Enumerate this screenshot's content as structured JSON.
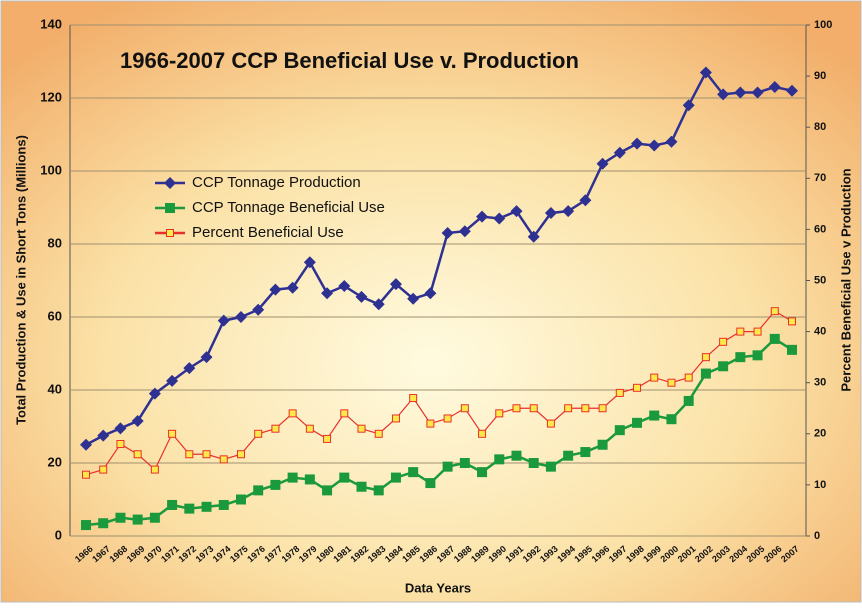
{
  "chart_data": {
    "type": "line",
    "title": "1966-2007 CCP Beneficial Use v. Production",
    "xlabel": "Data Years",
    "ylabel": "Total Production & Use in Short Tons (Millions)",
    "y2label": "Percent Beneficial Use v Production",
    "categories": [
      "1966",
      "1967",
      "1968",
      "1969",
      "1970",
      "1971",
      "1972",
      "1973",
      "1974",
      "1975",
      "1976",
      "1977",
      "1978",
      "1979",
      "1980",
      "1981",
      "1982",
      "1983",
      "1984",
      "1985",
      "1986",
      "1987",
      "1988",
      "1989",
      "1990",
      "1991",
      "1992",
      "1993",
      "1994",
      "1995",
      "1996",
      "1997",
      "1998",
      "1999",
      "2000",
      "2001",
      "2002",
      "2003",
      "2004",
      "2005",
      "2006",
      "2007"
    ],
    "series": [
      {
        "name": "CCP Tonnage Production",
        "color": "#2e3192",
        "marker": "diamond",
        "values": [
          25,
          27.5,
          29.5,
          31.5,
          39,
          42.5,
          46,
          49,
          59,
          60,
          62,
          67.5,
          68,
          75,
          66.5,
          68.5,
          65.5,
          63.5,
          69,
          65,
          66.5,
          83,
          83.5,
          87.5,
          87,
          89,
          82,
          88.5,
          89,
          92,
          102,
          105,
          107.5,
          107,
          108,
          118,
          127,
          121,
          121.5,
          121.5,
          123,
          122
        ]
      },
      {
        "name": "CCP Tonnage Beneficial Use",
        "color": "#1a9a3c",
        "marker": "square",
        "values": [
          3,
          3.5,
          5,
          4.5,
          5,
          8.5,
          7.5,
          8,
          8.5,
          10,
          12.5,
          14,
          16,
          15.5,
          12.5,
          16,
          13.5,
          12.5,
          16,
          17.5,
          14.5,
          19,
          20,
          17.5,
          21,
          22,
          20,
          19,
          22,
          23,
          25,
          29,
          31,
          33,
          32,
          37,
          44.5,
          46.5,
          49,
          49.5,
          54,
          51
        ]
      },
      {
        "name": "Percent Beneficial Use",
        "color": "#e8302a",
        "marker": "hollow-square",
        "axis": "y2",
        "values": [
          12,
          13,
          18,
          16,
          13,
          20,
          16,
          16,
          15,
          16,
          20,
          21,
          24,
          21,
          19,
          24,
          21,
          20,
          23,
          27,
          22,
          23,
          25,
          20,
          24,
          25,
          25,
          22,
          25,
          25,
          25,
          28,
          29,
          31,
          30,
          31,
          35,
          38,
          40,
          40,
          44,
          42
        ]
      }
    ],
    "ylim": [
      0,
      140
    ],
    "yticks": [
      0,
      20,
      40,
      60,
      80,
      100,
      120,
      140
    ],
    "y2lim": [
      0,
      100
    ],
    "y2ticks": [
      0,
      10,
      20,
      30,
      40,
      50,
      60,
      70,
      80,
      90,
      100
    ],
    "grid": true
  }
}
